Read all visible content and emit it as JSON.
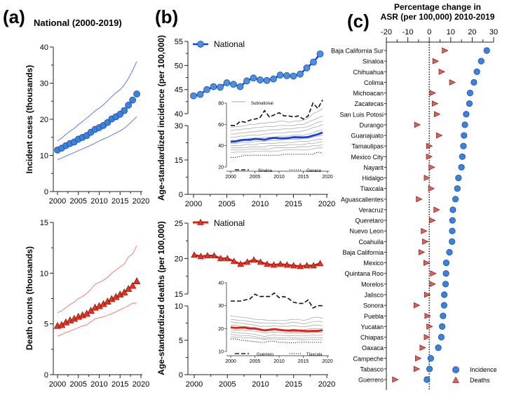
{
  "labels": {
    "a": "(a)",
    "b": "(b)",
    "c": "(c)"
  },
  "chart_data": [
    {
      "id": "a_top",
      "type": "line",
      "title": "National (2000-2019)",
      "ylabel": "Incident cases (thousands)",
      "xlabel": "",
      "xlim": [
        2000,
        2020
      ],
      "ylim": [
        0,
        40
      ],
      "yticks": [
        0,
        10,
        20,
        30,
        40
      ],
      "xticks": [
        2000,
        2005,
        2010,
        2015,
        2020
      ],
      "x": [
        2000,
        2001,
        2002,
        2003,
        2004,
        2005,
        2006,
        2007,
        2008,
        2009,
        2010,
        2011,
        2012,
        2013,
        2014,
        2015,
        2016,
        2017,
        2018,
        2019
      ],
      "series": [
        {
          "role": "estimate",
          "marker": "circle",
          "color": "#3b82e0",
          "values": [
            11.5,
            12,
            12.7,
            13.3,
            13.7,
            14.5,
            15,
            15.5,
            16.4,
            17.2,
            17.7,
            18.3,
            19.1,
            20.1,
            20.7,
            21.4,
            22.4,
            23.9,
            25.3,
            27.0
          ]
        },
        {
          "role": "upper",
          "color": "#4a6fe8",
          "values": [
            14,
            14.8,
            15.8,
            16.7,
            17.5,
            18.5,
            19.4,
            20.3,
            21.3,
            22.3,
            23.1,
            24,
            25.1,
            26.3,
            27.3,
            28.2,
            29.5,
            31.3,
            33.5,
            36
          ]
        },
        {
          "role": "lower",
          "color": "#4a6fe8",
          "values": [
            8.8,
            9.3,
            9.8,
            10.3,
            10.8,
            11.3,
            11.8,
            12.3,
            12.8,
            13.4,
            14,
            14.5,
            15,
            15.6,
            16.2,
            16.8,
            17.5,
            18.5,
            19.6,
            20.7
          ]
        }
      ]
    },
    {
      "id": "a_bottom",
      "type": "line",
      "ylabel": "Death counts (thousands)",
      "xlabel": "",
      "xlim": [
        2000,
        2020
      ],
      "ylim": [
        0,
        15
      ],
      "yticks": [
        0,
        5,
        10,
        15
      ],
      "xticks": [
        2000,
        2005,
        2010,
        2015,
        2020
      ],
      "x": [
        2000,
        2001,
        2002,
        2003,
        2004,
        2005,
        2006,
        2007,
        2008,
        2009,
        2010,
        2011,
        2012,
        2013,
        2014,
        2015,
        2016,
        2017,
        2018,
        2019
      ],
      "series": [
        {
          "role": "estimate",
          "marker": "triangle",
          "color": "#e8321e",
          "values": [
            4.8,
            4.9,
            5.15,
            5.35,
            5.5,
            5.7,
            5.85,
            6.0,
            6.3,
            6.6,
            6.75,
            6.95,
            7.2,
            7.45,
            7.65,
            7.9,
            8.1,
            8.45,
            8.75,
            9.2
          ]
        },
        {
          "role": "upper",
          "color": "#f07060",
          "values": [
            6.1,
            6.3,
            6.6,
            6.9,
            7.15,
            7.5,
            7.7,
            8.0,
            8.4,
            8.9,
            9.1,
            9.3,
            9.6,
            10,
            10.3,
            10.6,
            10.9,
            11.6,
            11.9,
            12.7
          ]
        },
        {
          "role": "lower",
          "color": "#f07060",
          "values": [
            3.8,
            3.95,
            4.15,
            4.3,
            4.45,
            4.65,
            4.8,
            4.9,
            5.2,
            5.5,
            5.6,
            5.7,
            5.85,
            6.0,
            6.2,
            6.4,
            6.6,
            6.8,
            7.05,
            7.05
          ]
        }
      ]
    },
    {
      "id": "b_top",
      "type": "line",
      "ylabel": "Age-standardized incidence (per 100,000)",
      "xlim": [
        2000,
        2020
      ],
      "ylim": [
        0,
        55
      ],
      "y_break": [
        30,
        40
      ],
      "yticks": [
        0,
        15,
        30,
        40,
        45,
        50,
        55
      ],
      "xticks": [
        2000,
        2005,
        2010,
        2015,
        2020
      ],
      "x": [
        2000,
        2001,
        2002,
        2003,
        2004,
        2005,
        2006,
        2007,
        2008,
        2009,
        2010,
        2011,
        2012,
        2013,
        2014,
        2015,
        2016,
        2017,
        2018,
        2019
      ],
      "series": [
        {
          "name": "National",
          "marker": "circle",
          "color": "#1a3fe0",
          "values": [
            43.7,
            44,
            45,
            45.6,
            45.5,
            46.4,
            46.1,
            45.6,
            46.8,
            47.4,
            47,
            46.9,
            47.2,
            48,
            47.9,
            47.8,
            48.2,
            49.5,
            50.7,
            52.4
          ]
        }
      ],
      "inset": {
        "xlim": [
          2000,
          2020
        ],
        "ylim": [
          20,
          80
        ],
        "yticks": [
          20,
          40,
          60,
          80
        ],
        "xticks": [
          2000,
          2005,
          2010,
          2015,
          2020
        ],
        "legend": {
          "subnational": "Subnational",
          "high": "Sinaloa",
          "low": "Oaxaca"
        },
        "high": [
          59,
          59,
          63,
          62,
          64,
          65,
          66,
          73,
          67,
          69,
          71,
          68,
          68,
          67,
          68,
          65,
          68,
          80,
          75,
          83
        ],
        "low": [
          29,
          29,
          30,
          31,
          31,
          31,
          31,
          31,
          31,
          31,
          31,
          32,
          32,
          32,
          32,
          32,
          32,
          32,
          34,
          33
        ],
        "national": [
          43.7,
          44,
          45,
          45.6,
          45.5,
          46.4,
          46.1,
          45.6,
          46.8,
          47.4,
          47,
          46.9,
          47.2,
          48,
          47.9,
          47.8,
          48.2,
          49.5,
          50.7,
          52.4
        ],
        "subnational": [
          [
            57,
            58,
            58,
            59,
            60,
            60,
            61,
            61,
            62,
            62,
            63,
            63,
            62,
            63,
            63,
            64,
            66,
            70,
            72,
            75
          ],
          [
            54,
            55,
            55,
            56,
            56,
            57,
            57,
            58,
            58,
            58,
            59,
            59,
            59,
            59,
            60,
            60,
            62,
            64,
            66,
            68
          ],
          [
            51,
            51,
            52,
            52,
            53,
            53,
            54,
            54,
            55,
            55,
            55,
            56,
            56,
            56,
            57,
            57,
            58,
            60,
            62,
            63
          ],
          [
            48,
            48,
            49,
            49,
            50,
            50,
            50,
            51,
            51,
            52,
            52,
            52,
            53,
            53,
            53,
            54,
            55,
            57,
            58,
            60
          ],
          [
            45,
            45,
            46,
            46,
            47,
            47,
            47,
            48,
            48,
            48,
            49,
            49,
            49,
            50,
            50,
            50,
            51,
            52,
            54,
            55
          ],
          [
            42,
            42,
            43,
            43,
            43,
            44,
            44,
            44,
            45,
            45,
            45,
            46,
            46,
            46,
            46,
            47,
            47,
            48,
            49,
            50
          ],
          [
            40,
            40,
            40,
            41,
            41,
            41,
            42,
            42,
            42,
            42,
            43,
            43,
            43,
            43,
            44,
            44,
            44,
            45,
            46,
            46
          ],
          [
            38,
            38,
            38,
            38,
            39,
            39,
            39,
            39,
            40,
            40,
            40,
            40,
            41,
            41,
            41,
            41,
            42,
            42,
            43,
            44
          ],
          [
            36,
            36,
            36,
            36,
            37,
            37,
            37,
            37,
            37,
            38,
            38,
            38,
            38,
            38,
            39,
            39,
            39,
            40,
            40,
            41
          ],
          [
            33,
            34,
            34,
            34,
            34,
            35,
            35,
            35,
            35,
            35,
            35,
            36,
            36,
            36,
            36,
            36,
            36,
            37,
            38,
            38
          ]
        ]
      }
    },
    {
      "id": "b_bottom",
      "type": "line",
      "ylabel": "Age-standardized deaths (per 100,000)",
      "xlim": [
        2000,
        2020
      ],
      "ylim": [
        0,
        25
      ],
      "y_break": [
        10,
        15
      ],
      "yticks": [
        0,
        5,
        10,
        15,
        20,
        25
      ],
      "xticks": [
        2000,
        2005,
        2010,
        2015,
        2020
      ],
      "x": [
        2000,
        2001,
        2002,
        2003,
        2004,
        2005,
        2006,
        2007,
        2008,
        2009,
        2010,
        2011,
        2012,
        2013,
        2014,
        2015,
        2016,
        2017,
        2018,
        2019
      ],
      "series": [
        {
          "name": "National",
          "marker": "triangle",
          "color": "#e8190e",
          "values": [
            20.5,
            20.3,
            20.4,
            20.4,
            20.0,
            20.0,
            19.6,
            19.2,
            19.5,
            19.8,
            19.5,
            19.2,
            19.1,
            19.2,
            19.1,
            19.0,
            18.9,
            19.0,
            19.0,
            19.3
          ]
        }
      ],
      "inset": {
        "xlim": [
          2000,
          2020
        ],
        "ylim": [
          10,
          40
        ],
        "yticks": [
          10,
          20,
          30,
          40
        ],
        "xticks": [
          2000,
          2005,
          2010,
          2015,
          2020
        ],
        "legend": {
          "high": "Guerrero",
          "low": "Tlaxcala"
        },
        "high": [
          32,
          32,
          32,
          32.5,
          33,
          35,
          34,
          34,
          34,
          35.5,
          33.5,
          34,
          33,
          31.5,
          31,
          31,
          32.5,
          29,
          30,
          30
        ],
        "low": [
          15.5,
          15.5,
          15,
          14.8,
          14.5,
          14.3,
          14,
          14,
          14.5,
          14.5,
          14,
          14,
          13.8,
          13.8,
          14,
          14,
          14,
          14,
          14,
          14
        ],
        "national": [
          20.5,
          20.3,
          20.4,
          20.4,
          20.0,
          20.0,
          19.6,
          19.2,
          19.5,
          19.8,
          19.5,
          19.2,
          19.1,
          19.2,
          19.1,
          19.0,
          18.9,
          19.0,
          19.0,
          19.3
        ],
        "subnational": [
          [
            25.5,
            25.2,
            25,
            24.8,
            24.5,
            24,
            24,
            23.8,
            23.5,
            23.6,
            23.5,
            23.5,
            23.8,
            24,
            24,
            23.5,
            24,
            24.8,
            25,
            24.5
          ],
          [
            24,
            23.8,
            23.5,
            23.5,
            23,
            22.8,
            22.5,
            22.5,
            22.3,
            22.5,
            22.3,
            22,
            22.5,
            22.8,
            22.5,
            22,
            22.5,
            23,
            23.2,
            23
          ],
          [
            23,
            22.5,
            22.5,
            22,
            21.8,
            21.5,
            21,
            21,
            21,
            21.2,
            21,
            21,
            21,
            21.3,
            21,
            20.8,
            21,
            21.5,
            21.5,
            21.2
          ],
          [
            21.5,
            21.5,
            21,
            21,
            20.5,
            20.5,
            20,
            19.5,
            19.8,
            20,
            19.8,
            19.5,
            19.5,
            19.8,
            19.5,
            19.5,
            19.8,
            20,
            20,
            20
          ],
          [
            19.5,
            19.3,
            19.3,
            19,
            19,
            18.8,
            18.5,
            18,
            18.3,
            18.5,
            18.3,
            18.2,
            18,
            18.2,
            18,
            18,
            18.2,
            18.5,
            18.3,
            18.5
          ],
          [
            18.5,
            18.3,
            18,
            18,
            17.8,
            17.5,
            17,
            16.5,
            17,
            17.3,
            17,
            17,
            16.8,
            17,
            16.8,
            16.8,
            17,
            17.2,
            17,
            17.2
          ],
          [
            17.5,
            17.2,
            17,
            17,
            16.8,
            16.5,
            16,
            15.8,
            16,
            16.2,
            16,
            16,
            16,
            16,
            15.8,
            15.8,
            16,
            16.2,
            16,
            16
          ],
          [
            16.5,
            16.3,
            16.2,
            16,
            16,
            15.8,
            15.5,
            15.3,
            15.5,
            15.5,
            15.3,
            15.3,
            15.2,
            15.3,
            15.2,
            15,
            15.2,
            15.3,
            15.2,
            15.2
          ]
        ]
      }
    },
    {
      "id": "c",
      "type": "scatter",
      "title": [
        "Percentage change in",
        "ASR (per 100,000) 2010-2019"
      ],
      "xlim": [
        -20,
        30
      ],
      "xticks": [
        -20,
        -10,
        0,
        10,
        20,
        30
      ],
      "legend": {
        "incidence": "Incidence",
        "deaths": "Deaths"
      },
      "colors": {
        "incidence": "#3b82e0",
        "deaths": "#e06060"
      },
      "categories": [
        "Baja California Sur",
        "Sinaloa",
        "Chihuahua",
        "Colima",
        "Michoacan",
        "Zacatecas",
        "San Luis Potosi",
        "Durango",
        "Guanajuato",
        "Tamaulipas",
        "Mexico City",
        "Nayarit",
        "Hidalgo",
        "Tlaxcala",
        "Aguascalientes",
        "Veracruz",
        "Queretaro",
        "Nuevo Leon",
        "Coahuila",
        "Baja California",
        "Mexico",
        "Quintana Roo",
        "Morelos",
        "Jalisco",
        "Sonora",
        "Puebla",
        "Yucatan",
        "Chiapas",
        "Oaxaca",
        "Campeche",
        "Tabasco",
        "Guerrero"
      ],
      "incidence": [
        26.8,
        24.2,
        22.2,
        20.8,
        19,
        18.7,
        17.2,
        16.6,
        16.2,
        15.9,
        15.4,
        15,
        13.6,
        13.1,
        12.2,
        11,
        10.8,
        10.7,
        10.6,
        9.4,
        7.9,
        7.8,
        7.6,
        7,
        6.9,
        6.4,
        6,
        5.6,
        4.2,
        0.7,
        0.1,
        -1.1
      ],
      "deaths": [
        7.2,
        2.8,
        5.7,
        10.6,
        1.4,
        2.5,
        3.5,
        -5.7,
        4.5,
        -0.1,
        -0.2,
        1,
        -1.2,
        0.8,
        -4.9,
        3.3,
        1.3,
        -2.6,
        -2,
        -3.7,
        -1.4,
        1.7,
        1.4,
        -1.1,
        -6,
        -0.9,
        0,
        -1.2,
        -3.2,
        -5.3,
        -6,
        -16
      ]
    }
  ]
}
